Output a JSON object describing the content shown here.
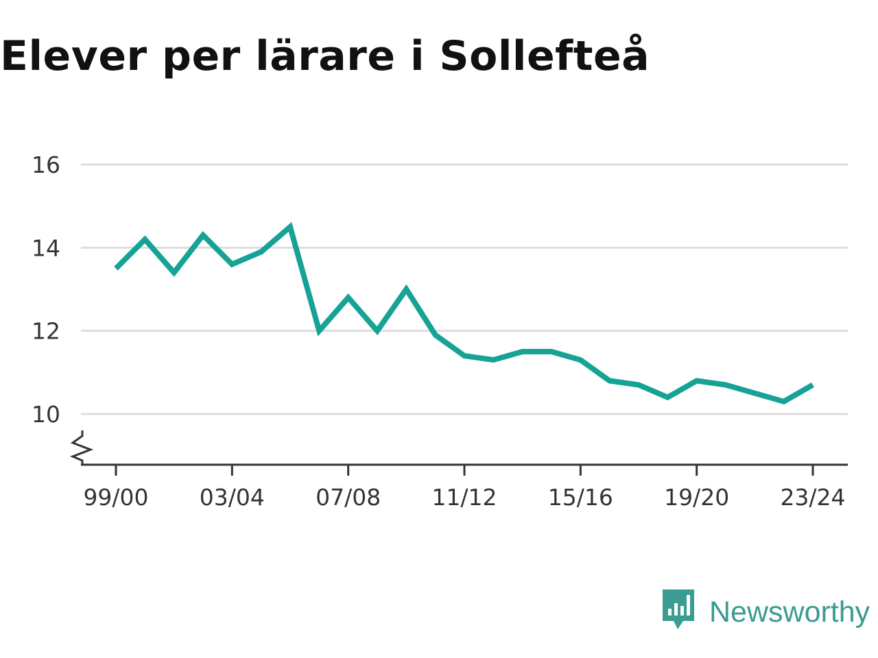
{
  "title": "Elever per lärare i Sollefteå",
  "brand": {
    "name": "Newsworthy",
    "icon": "bar-chart-speech-bubble-icon",
    "color": "#3a9c92"
  },
  "chart_data": {
    "type": "line",
    "title": "Elever per lärare i Sollefteå",
    "xlabel": "",
    "ylabel": "",
    "x": [
      "99/00",
      "00/01",
      "01/02",
      "02/03",
      "03/04",
      "04/05",
      "05/06",
      "06/07",
      "07/08",
      "08/09",
      "09/10",
      "10/11",
      "11/12",
      "12/13",
      "13/14",
      "14/15",
      "15/16",
      "16/17",
      "17/18",
      "18/19",
      "19/20",
      "20/21",
      "21/22",
      "22/23",
      "23/24"
    ],
    "series": [
      {
        "values": [
          13.5,
          14.2,
          13.4,
          14.3,
          13.6,
          13.9,
          14.5,
          12.0,
          12.8,
          12.0,
          13.0,
          11.9,
          11.4,
          11.3,
          11.5,
          11.5,
          11.3,
          10.8,
          10.7,
          10.4,
          10.8,
          10.7,
          10.5,
          10.3,
          10.7
        ],
        "color": "#16a396"
      }
    ],
    "x_tick_labels": [
      "99/00",
      "03/04",
      "07/08",
      "11/12",
      "15/16",
      "19/20",
      "23/24"
    ],
    "y_ticks": [
      10,
      12,
      14,
      16
    ],
    "ylim": [
      10,
      16
    ],
    "y_axis_break": true,
    "grid": true,
    "gridline_color": "#dddddd",
    "axis_color": "#333333"
  }
}
